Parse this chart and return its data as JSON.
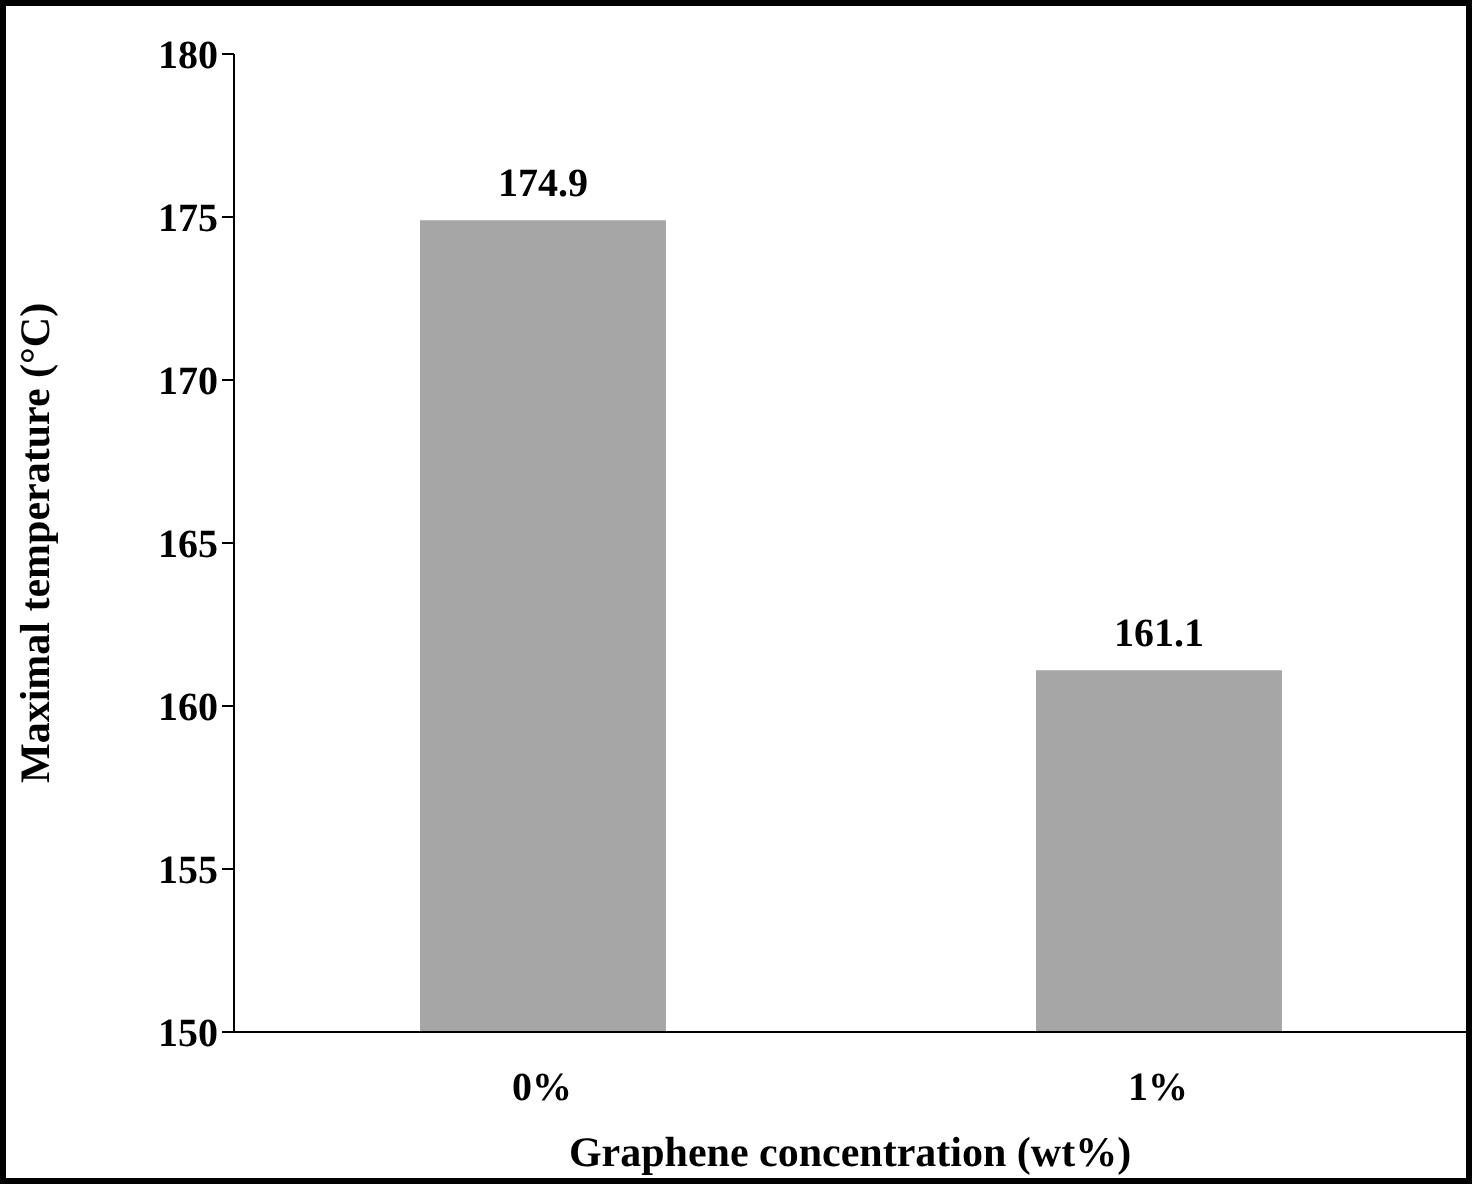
{
  "chart_data": {
    "type": "bar",
    "xlabel": "Graphene concentration (wt%)",
    "ylabel": "Maximal temperature (°C)",
    "categories": [
      "0%",
      "1%"
    ],
    "values": [
      174.9,
      161.1
    ],
    "color": "#a6a6a6",
    "ylim": [
      150,
      180
    ],
    "yticks": [
      150,
      155,
      160,
      165,
      170,
      175,
      180
    ],
    "grid": false,
    "data_labels": true
  }
}
